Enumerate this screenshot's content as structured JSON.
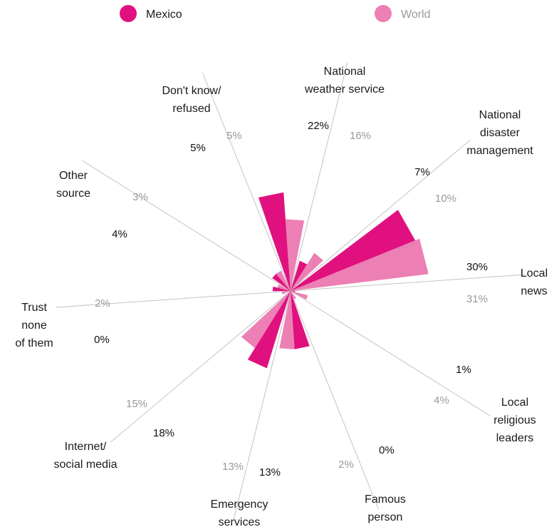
{
  "chart_data": {
    "type": "polar_bar",
    "legend": [
      {
        "name": "Mexico",
        "color": "#e0117f"
      },
      {
        "name": "World",
        "color": "#ec7fb4"
      }
    ],
    "series": [
      {
        "name": "Mexico",
        "color": "#e0117f",
        "values": [
          22,
          7,
          30,
          1,
          0,
          13,
          18,
          0,
          4,
          5
        ]
      },
      {
        "name": "World",
        "color": "#ec7fb4",
        "values": [
          16,
          10,
          31,
          4,
          2,
          13,
          15,
          2,
          3,
          5
        ]
      }
    ],
    "categories": [
      {
        "lines": [
          "National",
          "weather service"
        ]
      },
      {
        "lines": [
          "National",
          "disaster",
          "management"
        ]
      },
      {
        "lines": [
          "Local",
          "news"
        ]
      },
      {
        "lines": [
          "Local",
          "religious",
          "leaders"
        ]
      },
      {
        "lines": [
          "Famous",
          "person"
        ]
      },
      {
        "lines": [
          "Emergency",
          "services"
        ]
      },
      {
        "lines": [
          "Internet/",
          "social media"
        ]
      },
      {
        "lines": [
          "Trust",
          "none",
          "of them"
        ]
      },
      {
        "lines": [
          "Other",
          "source"
        ]
      },
      {
        "lines": [
          "Don't know/",
          "refused"
        ]
      }
    ],
    "value_labels": {
      "Mexico": [
        "22%",
        "7%",
        "30%",
        "1%",
        "0%",
        "13%",
        "18%",
        "0%",
        "4%",
        "5%"
      ],
      "World": [
        "16%",
        "10%",
        "31%",
        "4%",
        "2%",
        "13%",
        "15%",
        "2%",
        "3%",
        "5%"
      ]
    }
  }
}
